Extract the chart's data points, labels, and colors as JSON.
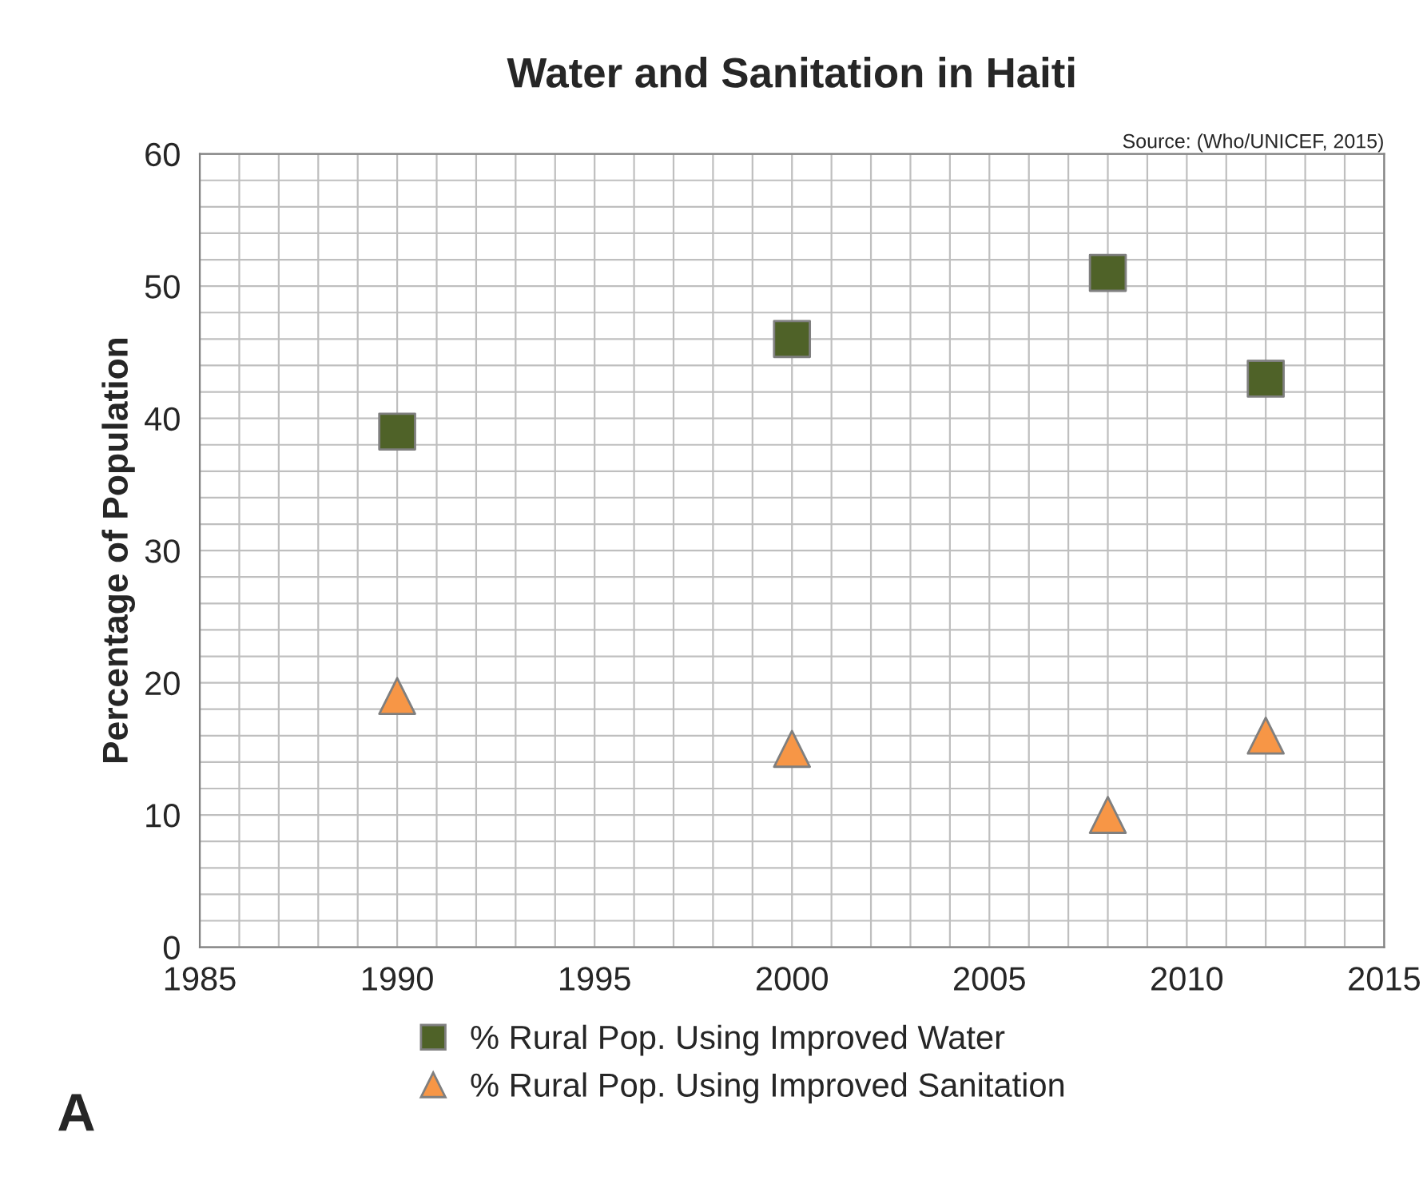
{
  "chart_data": {
    "type": "scatter",
    "title": "Water and Sanitation in Haiti",
    "ylabel": "Percentage of Population",
    "annotations": [
      "Source: (Who/UNICEF, 2015)",
      "A"
    ],
    "x": [
      1990,
      2000,
      2008,
      2012
    ],
    "series": [
      {
        "name": "% Rural Pop. Using Improved Water",
        "color": "#4f6228",
        "marker": "square",
        "values": [
          39,
          46,
          51,
          43
        ]
      },
      {
        "name": "% Rural Pop. Using Improved Sanitation",
        "color": "#f79646",
        "marker": "triangle",
        "values": [
          19,
          15,
          10,
          16
        ]
      }
    ],
    "xlim": [
      1985,
      2015
    ],
    "xticks": [
      1985,
      1990,
      1995,
      2000,
      2005,
      2010,
      2015
    ],
    "ylim": [
      0,
      60
    ],
    "yticks": [
      0,
      10,
      20,
      30,
      40,
      50,
      60
    ],
    "grid": true,
    "legend": "bottom"
  }
}
